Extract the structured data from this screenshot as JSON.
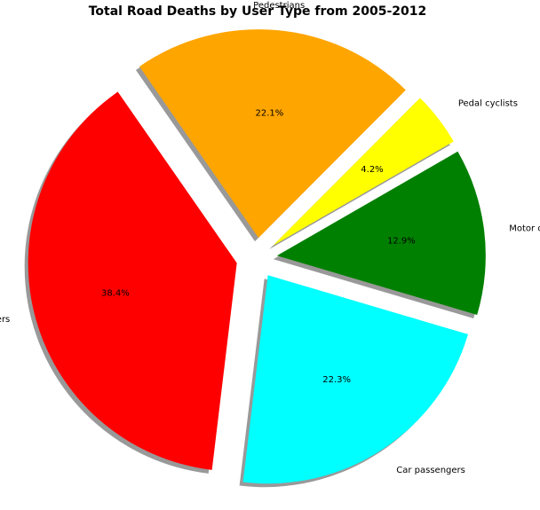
{
  "chart_data": {
    "type": "pie",
    "title": "Total Road Deaths by User Type from 2005-2012",
    "start_angle_deg": 30,
    "direction": "counterclockwise",
    "exploded": true,
    "shadow": true,
    "slices": [
      {
        "label": "Pedal cyclists",
        "percent": 4.2,
        "percent_label": "4.2%",
        "color": "#ffff00"
      },
      {
        "label": "Pedestrians",
        "percent": 22.1,
        "percent_label": "22.1%",
        "color": "#ffa500"
      },
      {
        "label": "Car drivers",
        "percent": 38.4,
        "percent_label": "38.4%",
        "color": "#ff0000"
      },
      {
        "label": "Car passengers",
        "percent": 22.3,
        "percent_label": "22.3%",
        "color": "#00ffff"
      },
      {
        "label": "Motor cyclists",
        "percent": 12.9,
        "percent_label": "12.9%",
        "color": "#008000"
      }
    ]
  }
}
